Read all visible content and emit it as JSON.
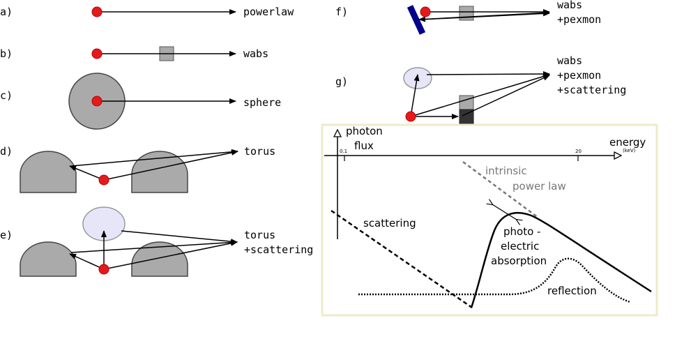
{
  "panels": {
    "a": {
      "letter": "a)",
      "label": "powerlaw"
    },
    "b": {
      "letter": "b)",
      "label": "wabs"
    },
    "c": {
      "letter": "c)",
      "label": "sphere"
    },
    "d": {
      "letter": "d)",
      "label": "torus"
    },
    "e": {
      "letter": "e)",
      "label_line1": "torus",
      "label_line2": "+scattering"
    },
    "f": {
      "letter": "f)",
      "label_line1": "wabs",
      "label_line2": "+pexmon"
    },
    "g": {
      "letter": "g)",
      "label_line1": "wabs",
      "label_line2": "+pexmon",
      "label_line3": "+scattering"
    }
  },
  "spectrum": {
    "y_label_line1": "photon",
    "y_label_line2": "flux",
    "x_label": "energy",
    "x_unit": "(keV)",
    "tick_left": "0.1",
    "tick_right": "20",
    "curves": {
      "intrinsic_line1": "intrinsic",
      "intrinsic_line2": "power law",
      "scattering": "scattering",
      "photo_line1": "photo -",
      "photo_line2": "electric",
      "photo_line3": "absorption",
      "reflection": "reflection"
    }
  },
  "colors": {
    "source": "#e41a1c",
    "obscurer": "#aaaaaa",
    "scatter_cloud": "#e6e6f8",
    "reflector": "#00008b",
    "absorber_dark": "#333333",
    "panel_border": "#efebc9",
    "intrinsic_curve": "#777777"
  }
}
